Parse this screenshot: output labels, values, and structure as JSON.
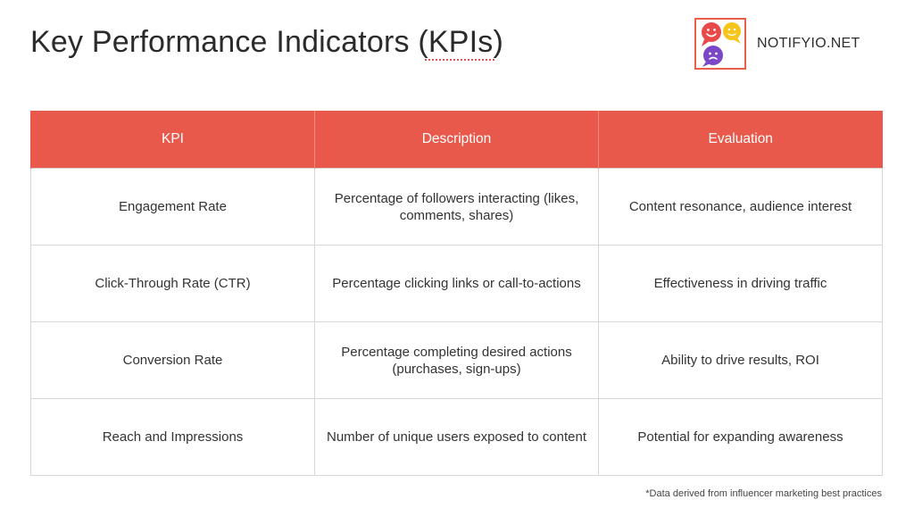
{
  "slide": {
    "title_main": "Key Performance Indicators ",
    "title_abbr": "(KPIs)"
  },
  "brand": {
    "name": "NOTIFYIO.NET",
    "colors": {
      "accent": "#e9594b",
      "bubble_red": "#e84a4a",
      "bubble_yellow": "#f5c51b",
      "bubble_purple": "#7b47c9"
    }
  },
  "table": {
    "headers": [
      "KPI",
      "Description",
      "Evaluation"
    ],
    "rows": [
      {
        "kpi": "Engagement Rate",
        "description": "Percentage of followers interacting (likes, comments, shares)",
        "evaluation": "Content resonance, audience interest"
      },
      {
        "kpi": "Click-Through Rate (CTR)",
        "description": "Percentage clicking links or call-to-actions",
        "evaluation": "Effectiveness in driving traffic"
      },
      {
        "kpi": "Conversion Rate",
        "description": "Percentage completing desired actions (purchases, sign-ups)",
        "evaluation": "Ability to drive results, ROI"
      },
      {
        "kpi": "Reach and Impressions",
        "description": "Number of unique users exposed to content",
        "evaluation": "Potential for expanding awareness"
      }
    ]
  },
  "footnote": "*Data derived from influencer marketing best practices"
}
